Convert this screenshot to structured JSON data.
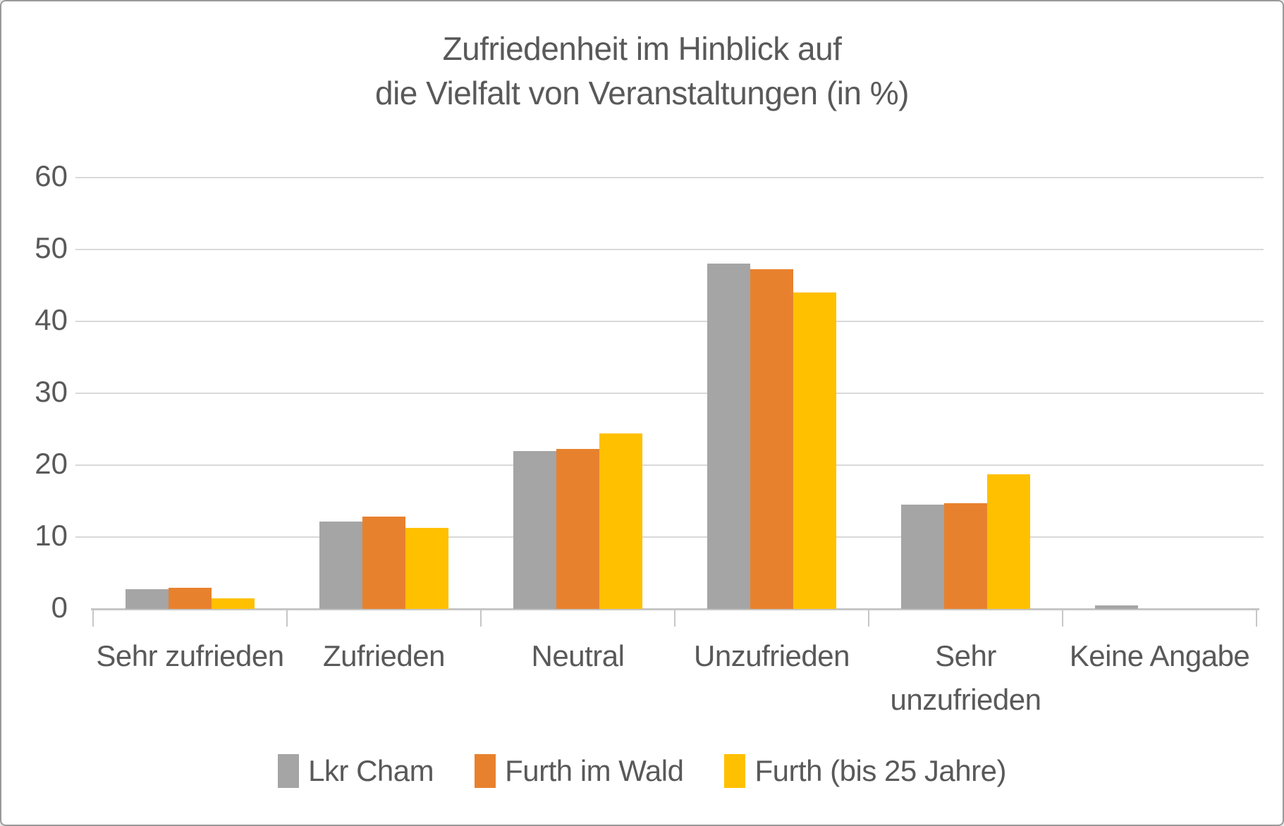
{
  "chart_data": {
    "type": "bar",
    "title": "Zufriedenheit im Hinblick auf\ndie Vielfalt von Veranstaltungen (in %)",
    "categories": [
      "Sehr zufrieden",
      "Zufrieden",
      "Neutral",
      "Unzufrieden",
      "Sehr unzufrieden",
      "Keine Angabe"
    ],
    "series": [
      {
        "name": "Lkr Cham",
        "color": "#A5A5A5",
        "values": [
          2.7,
          12.2,
          22.0,
          48.0,
          14.5,
          0.5
        ]
      },
      {
        "name": "Furth im Wald",
        "color": "#E8812D",
        "values": [
          2.9,
          12.8,
          22.3,
          47.3,
          14.7,
          0
        ]
      },
      {
        "name": "Furth (bis 25 Jahre)",
        "color": "#FFC000",
        "values": [
          1.5,
          11.3,
          24.4,
          44.0,
          18.7,
          0
        ]
      }
    ],
    "xlabel": "",
    "ylabel": "",
    "ylim": [
      0,
      60
    ],
    "yticks": [
      0,
      10,
      20,
      30,
      40,
      50,
      60
    ],
    "grid": "horizontal-only",
    "legend_position": "bottom"
  },
  "colors": {
    "text": "#595959",
    "gridline": "#D9D9D9",
    "axis_line": "#C6C6C6",
    "background": "#FFFFFF"
  }
}
